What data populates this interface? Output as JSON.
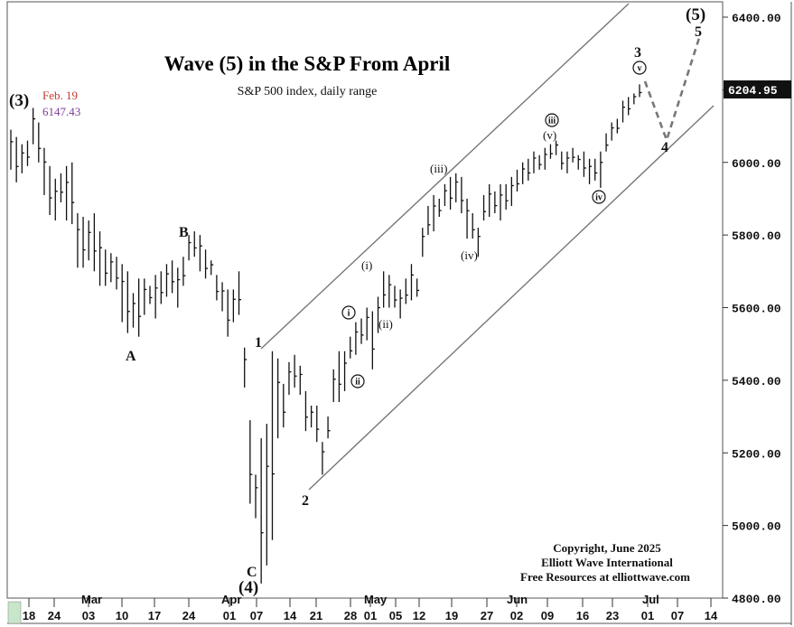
{
  "chart_data": {
    "type": "ohlc",
    "title": "Wave (5) in the S&P From April",
    "subtitle": "S&P 500 index, daily range",
    "y_ticks": [
      "4800.00",
      "5000.00",
      "5200.00",
      "5400.00",
      "5600.00",
      "5800.00",
      "6000.00",
      "6200.00",
      "6400.00"
    ],
    "ylim": [
      4800,
      6400
    ],
    "last_price": "6204.95",
    "x_day_ticks": [
      "18",
      "24",
      "03",
      "10",
      "17",
      "24",
      "01",
      "07",
      "14",
      "21",
      "28",
      "01",
      "05",
      "12",
      "19",
      "27",
      "02",
      "09",
      "16",
      "23",
      "01",
      "07",
      "14"
    ],
    "months": [
      "Mar",
      "Apr",
      "May",
      "Jun",
      "Jul"
    ],
    "peak_annotation": {
      "date": "Feb. 19",
      "value": "6147.43"
    },
    "copyright": [
      "Copyright, June 2025",
      "Elliott Wave International",
      "Free Resources at elliottwave.com"
    ],
    "wave_labels": {
      "wave3_primary": "(3)",
      "wave4_primary": "(4)",
      "wave5_primary": "(5)",
      "A": "A",
      "B": "B",
      "C": "C",
      "one": "1",
      "two": "2",
      "three": "3",
      "four": "4",
      "five": "5",
      "minute_i": "i",
      "minute_ii": "ii",
      "minute_iii": "iii",
      "minute_iv": "iv",
      "minute_v": "v",
      "minuette_i": "(i)",
      "minuette_ii": "(ii)",
      "minuette_iii": "(iii)",
      "minuette_iv": "(iv)",
      "minuette_v": "(v)"
    },
    "bars": [
      [
        5980,
        6090
      ],
      [
        5945,
        6070
      ],
      [
        5970,
        6050
      ],
      [
        5990,
        6060
      ],
      [
        6050,
        6150
      ],
      [
        6000,
        6110
      ],
      [
        5910,
        6040
      ],
      [
        5855,
        5990
      ],
      [
        5840,
        5955
      ],
      [
        5890,
        5970
      ],
      [
        5840,
        5990
      ],
      [
        5830,
        6000
      ],
      [
        5710,
        5860
      ],
      [
        5710,
        5850
      ],
      [
        5730,
        5840
      ],
      [
        5700,
        5860
      ],
      [
        5660,
        5810
      ],
      [
        5660,
        5760
      ],
      [
        5670,
        5750
      ],
      [
        5650,
        5740
      ],
      [
        5560,
        5720
      ],
      [
        5530,
        5700
      ],
      [
        5545,
        5640
      ],
      [
        5520,
        5680
      ],
      [
        5580,
        5680
      ],
      [
        5610,
        5660
      ],
      [
        5570,
        5690
      ],
      [
        5610,
        5700
      ],
      [
        5630,
        5720
      ],
      [
        5640,
        5730
      ],
      [
        5600,
        5710
      ],
      [
        5660,
        5740
      ],
      [
        5730,
        5800
      ],
      [
        5740,
        5810
      ],
      [
        5700,
        5800
      ],
      [
        5680,
        5760
      ],
      [
        5690,
        5730
      ],
      [
        5620,
        5690
      ],
      [
        5590,
        5670
      ],
      [
        5520,
        5650
      ],
      [
        5560,
        5650
      ],
      [
        5580,
        5700
      ],
      [
        5380,
        5490
      ],
      [
        5060,
        5290
      ],
      [
        5020,
        5140
      ],
      [
        4840,
        5240
      ],
      [
        4890,
        5280
      ],
      [
        4960,
        5480
      ],
      [
        5240,
        5460
      ],
      [
        5270,
        5390
      ],
      [
        5360,
        5450
      ],
      [
        5380,
        5470
      ],
      [
        5360,
        5440
      ],
      [
        5260,
        5370
      ],
      [
        5270,
        5330
      ],
      [
        5230,
        5330
      ],
      [
        5140,
        5230
      ],
      [
        5240,
        5300
      ],
      [
        5340,
        5430
      ],
      [
        5340,
        5480
      ],
      [
        5370,
        5480
      ],
      [
        5460,
        5520
      ],
      [
        5470,
        5560
      ],
      [
        5500,
        5570
      ],
      [
        5510,
        5600
      ],
      [
        5430,
        5590
      ],
      [
        5530,
        5630
      ],
      [
        5600,
        5700
      ],
      [
        5600,
        5690
      ],
      [
        5600,
        5660
      ],
      [
        5570,
        5650
      ],
      [
        5610,
        5680
      ],
      [
        5620,
        5720
      ],
      [
        5630,
        5680
      ],
      [
        5740,
        5820
      ],
      [
        5800,
        5880
      ],
      [
        5810,
        5910
      ],
      [
        5850,
        5900
      ],
      [
        5880,
        5940
      ],
      [
        5870,
        5960
      ],
      [
        5890,
        5970
      ],
      [
        5860,
        5960
      ],
      [
        5790,
        5900
      ],
      [
        5790,
        5860
      ],
      [
        5740,
        5820
      ],
      [
        5840,
        5910
      ],
      [
        5850,
        5940
      ],
      [
        5860,
        5920
      ],
      [
        5840,
        5940
      ],
      [
        5870,
        5940
      ],
      [
        5880,
        5960
      ],
      [
        5920,
        5980
      ],
      [
        5940,
        6000
      ],
      [
        5950,
        6010
      ],
      [
        5970,
        6030
      ],
      [
        5980,
        6020
      ],
      [
        5980,
        6040
      ],
      [
        6010,
        6050
      ],
      [
        6020,
        6060
      ],
      [
        5980,
        6030
      ],
      [
        5970,
        6030
      ],
      [
        6000,
        6040
      ],
      [
        5980,
        6020
      ],
      [
        5960,
        6030
      ],
      [
        5940,
        6010
      ],
      [
        5950,
        6010
      ],
      [
        5930,
        6030
      ],
      [
        6030,
        6080
      ],
      [
        6060,
        6110
      ],
      [
        6080,
        6120
      ],
      [
        6110,
        6170
      ],
      [
        6130,
        6180
      ],
      [
        6160,
        6190
      ],
      [
        6180,
        6215
      ]
    ]
  }
}
